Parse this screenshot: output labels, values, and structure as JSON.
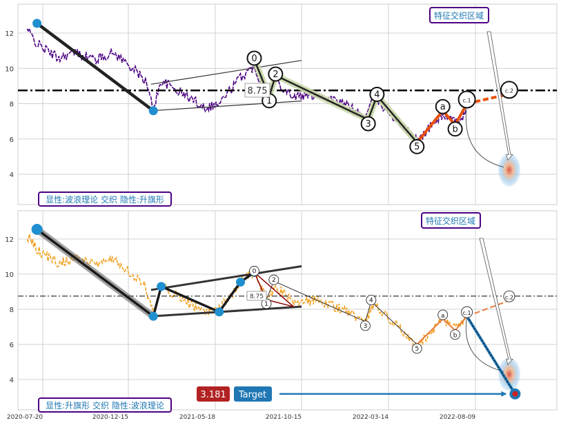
{
  "chart_data": [
    {
      "type": "line",
      "panel": "top",
      "colors": {
        "price": "#4b0082",
        "impulse": "#111111",
        "corrective": "#e8500a",
        "wave_fill": "#c8d8a8",
        "label_box": "#4b0082",
        "label_text": "#1f77b4"
      },
      "ylim": [
        2.2,
        13.8
      ],
      "yticks": [
        4,
        6,
        8,
        10,
        12
      ],
      "grid": true,
      "hline": {
        "value": 8.75,
        "label": "8.75",
        "style": "dash-dot"
      },
      "annotations": {
        "feature_zone": "特征交织区域",
        "pattern": "显性:波浪理论 交织 隐性:升旗形"
      },
      "big_line": [
        {
          "x": "2020-08-10",
          "y": 12.55
        },
        {
          "x": "2021-03-01",
          "y": 7.6
        }
      ],
      "pivots": [
        {
          "x": "2020-08-10",
          "y": 12.55
        },
        {
          "x": "2021-03-01",
          "y": 7.6
        }
      ],
      "flag_lines": [
        [
          {
            "x": "2021-02-25",
            "y": 9.1
          },
          {
            "x": "2021-11-15",
            "y": 10.45
          }
        ],
        [
          {
            "x": "2021-02-25",
            "y": 7.6
          },
          {
            "x": "2021-11-15",
            "y": 8.15
          }
        ]
      ],
      "waves": [
        {
          "label": "0",
          "x": "2021-08-25",
          "y": 10.5
        },
        {
          "label": "1",
          "x": "2021-09-20",
          "y": 8.4
        },
        {
          "label": "2",
          "x": "2021-10-01",
          "y": 9.6
        },
        {
          "label": "3",
          "x": "2022-03-10",
          "y": 7.1
        },
        {
          "label": "4",
          "x": "2022-03-25",
          "y": 8.45
        },
        {
          "label": "5",
          "x": "2022-06-01",
          "y": 5.8
        }
      ],
      "corrective": [
        {
          "label": "a",
          "x": "2022-07-15",
          "y": 7.6
        },
        {
          "label": "b",
          "x": "2022-08-05",
          "y": 6.8
        },
        {
          "label": "c.1",
          "x": "2022-08-25",
          "y": 8.0
        },
        {
          "label": "c.2",
          "x": "2022-11-05",
          "y": 8.55
        }
      ],
      "target": {
        "x": "2022-11-05",
        "y": 4.25
      }
    },
    {
      "type": "line",
      "panel": "bottom",
      "colors": {
        "price": "#f0a020",
        "impulse": "#222222",
        "corrective": "#e87a3a",
        "label_box": "#4b0082",
        "label_text": "#1f77b4",
        "target_badge": "#b22222",
        "target_button": "#1f77b4"
      },
      "ylim": [
        2.2,
        13.8
      ],
      "yticks": [
        4,
        6,
        8,
        10,
        12
      ],
      "xticks": [
        "2020-07-20",
        "2020-12-15",
        "2021-05-18",
        "2021-10-15",
        "2022-03-14",
        "2022-08-09"
      ],
      "grid": true,
      "hline": {
        "value": 8.75,
        "label": "8.75",
        "style": "dash-dot"
      },
      "annotations": {
        "feature_zone": "特征交织区域",
        "pattern": "显性:升旗形 交织 隐性:波浪理论"
      },
      "flag_pivots": [
        {
          "x": "2020-08-10",
          "y": 12.55
        },
        {
          "x": "2021-03-01",
          "y": 7.6
        },
        {
          "x": "2021-03-15",
          "y": 9.3
        },
        {
          "x": "2021-06-25",
          "y": 7.85
        },
        {
          "x": "2021-08-01",
          "y": 9.55
        },
        {
          "x": "2021-08-25",
          "y": 10.1
        }
      ],
      "flag_lines": [
        [
          {
            "x": "2021-02-25",
            "y": 9.1
          },
          {
            "x": "2021-11-15",
            "y": 10.45
          }
        ],
        [
          {
            "x": "2021-02-25",
            "y": 7.6
          },
          {
            "x": "2021-11-15",
            "y": 8.15
          }
        ]
      ],
      "waves": [
        {
          "label": "0",
          "x": "2021-08-25",
          "y": 10.1
        },
        {
          "label": "1",
          "x": "2021-09-15",
          "y": 8.55
        },
        {
          "label": "2",
          "x": "2021-09-28",
          "y": 9.6
        },
        {
          "label": "3",
          "x": "2022-03-05",
          "y": 7.3
        },
        {
          "label": "4",
          "x": "2022-03-15",
          "y": 8.45
        },
        {
          "label": "5",
          "x": "2022-06-01",
          "y": 6.0
        }
      ],
      "corrective": [
        {
          "label": "a",
          "x": "2022-07-15",
          "y": 7.45
        },
        {
          "label": "b",
          "x": "2022-08-05",
          "y": 6.8
        },
        {
          "label": "c.1",
          "x": "2022-08-25",
          "y": 7.6
        },
        {
          "label": "c.2",
          "x": "2022-11-05",
          "y": 8.5
        }
      ],
      "target": {
        "x": "2022-11-15",
        "y": 3.181,
        "label": "3.181",
        "button": "Target"
      }
    }
  ]
}
